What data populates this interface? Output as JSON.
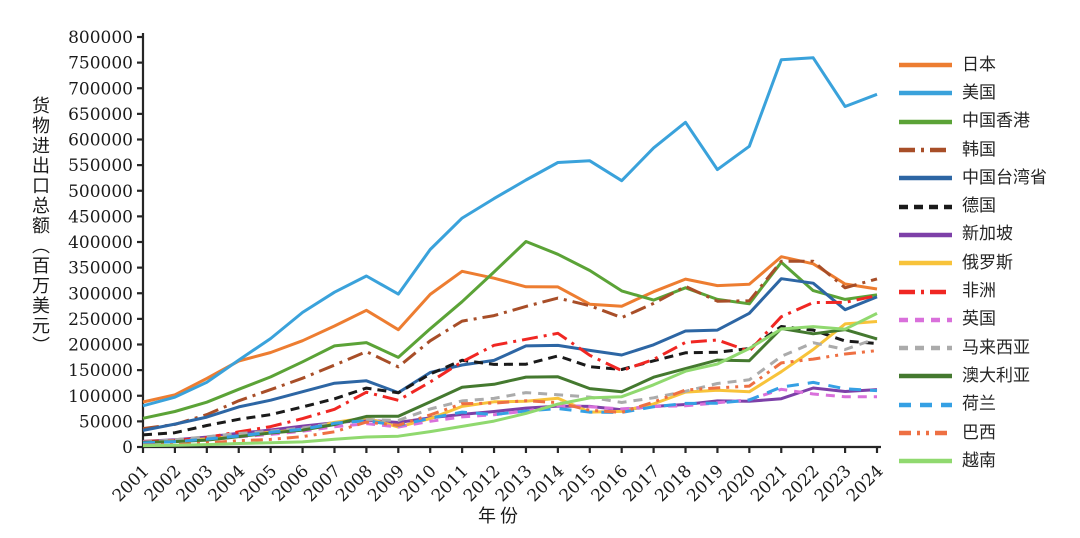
{
  "chart_data": {
    "type": "line",
    "title": "",
    "xlabel": "年份",
    "ylabel": "货物进出口总额（百万美元）",
    "x": [
      2001,
      2002,
      2003,
      2004,
      2005,
      2006,
      2007,
      2008,
      2009,
      2010,
      2011,
      2012,
      2013,
      2014,
      2015,
      2016,
      2017,
      2018,
      2019,
      2020,
      2021,
      2022,
      2023,
      2024
    ],
    "ylim": [
      0,
      800000
    ],
    "y_tick_step": 50000,
    "grid": false,
    "legend_position": "right",
    "axis_color": "#262626",
    "series": [
      {
        "key": "japan",
        "name": "日本",
        "color": "#ED7D31",
        "dash": "",
        "values": [
          87754,
          101910,
          133570,
          167890,
          184440,
          207360,
          236020,
          266780,
          228850,
          297770,
          342890,
          329450,
          312550,
          312440,
          278660,
          274790,
          303000,
          327700,
          315000,
          317530,
          371400,
          357400,
          318000,
          308200
        ]
      },
      {
        "key": "usa",
        "name": "美国",
        "color": "#3AA2DB",
        "dash": "",
        "values": [
          80485,
          97180,
          126330,
          169620,
          211630,
          262680,
          302080,
          333740,
          298260,
          385340,
          446650,
          484680,
          521000,
          555120,
          558390,
          519640,
          583700,
          633520,
          541220,
          586720,
          755645,
          759427,
          664451,
          688283
        ]
      },
      {
        "key": "hong-kong",
        "name": "中国香港",
        "color": "#5BA337",
        "dash": "",
        "values": [
          55971,
          69210,
          87410,
          112680,
          136700,
          166170,
          197250,
          203670,
          174920,
          230580,
          283520,
          341490,
          401010,
          376000,
          344340,
          304600,
          286650,
          310550,
          288000,
          279500,
          360330,
          305100,
          288000,
          297000
        ]
      },
      {
        "key": "korea",
        "name": "韩国",
        "color": "#A84E28",
        "dash": "16 6 3 6",
        "values": [
          35910,
          44070,
          63230,
          90070,
          111930,
          134310,
          159900,
          186110,
          156230,
          207170,
          245630,
          256330,
          274250,
          290490,
          275790,
          252580,
          280260,
          313430,
          284540,
          285260,
          362350,
          362290,
          310700,
          328080
        ]
      },
      {
        "key": "taiwan",
        "name": "中国台湾省",
        "color": "#2D66A4",
        "dash": "",
        "values": [
          32340,
          44650,
          58370,
          78320,
          91230,
          107840,
          124480,
          129220,
          106220,
          145370,
          160030,
          168960,
          197280,
          198310,
          188560,
          179600,
          199390,
          226250,
          228080,
          260810,
          328340,
          319680,
          267840,
          292970
        ]
      },
      {
        "key": "germany",
        "name": "德国",
        "color": "#1A1A1A",
        "dash": "9 6",
        "values": [
          23526,
          27810,
          41880,
          54120,
          63250,
          78230,
          94060,
          114990,
          105730,
          142390,
          169150,
          161130,
          161560,
          177750,
          156780,
          151290,
          168150,
          183880,
          184920,
          192070,
          235180,
          228030,
          206850,
          201880
        ]
      },
      {
        "key": "singapore",
        "name": "新加坡",
        "color": "#7D40A8",
        "dash": "",
        "values": [
          10934,
          14020,
          19350,
          26680,
          33150,
          40850,
          47160,
          52440,
          47860,
          57070,
          63650,
          69280,
          75910,
          79760,
          79240,
          72530,
          79200,
          82870,
          89960,
          89140,
          94280,
          115130,
          108390,
          112000
        ]
      },
      {
        "key": "russia",
        "name": "俄罗斯",
        "color": "#F8C33A",
        "dash": "",
        "values": [
          10670,
          11930,
          15760,
          21230,
          29100,
          33390,
          48170,
          56830,
          38800,
          55450,
          79250,
          88160,
          89210,
          95280,
          68060,
          69520,
          84070,
          107060,
          110750,
          107760,
          146870,
          190270,
          240110,
          244810
        ]
      },
      {
        "key": "africa",
        "name": "非洲",
        "color": "#F02723",
        "dash": "16 6 3 6",
        "values": [
          10800,
          12390,
          18540,
          29460,
          39740,
          55500,
          73570,
          106840,
          91070,
          126910,
          166300,
          198490,
          210240,
          221880,
          179000,
          149120,
          170640,
          204190,
          208700,
          187000,
          254290,
          282000,
          282100,
          295560
        ]
      },
      {
        "key": "uk",
        "name": "英国",
        "color": "#D970DB",
        "dash": "9 7",
        "values": [
          10310,
          11390,
          14390,
          19700,
          24510,
          30780,
          39430,
          45630,
          39100,
          50080,
          58790,
          63100,
          70040,
          80870,
          78540,
          74340,
          79030,
          80440,
          86270,
          92300,
          112660,
          103460,
          97980,
          98200
        ]
      },
      {
        "key": "malaysia",
        "name": "马来西亚",
        "color": "#ABABAB",
        "dash": "9 7",
        "values": [
          9425,
          14270,
          20130,
          26260,
          30700,
          37110,
          46390,
          53470,
          51960,
          74210,
          90010,
          94810,
          106070,
          102020,
          97360,
          86850,
          96030,
          108660,
          123960,
          131160,
          176800,
          203590,
          190240,
          212040
        ]
      },
      {
        "key": "australia",
        "name": "澳大利亚",
        "color": "#44792F",
        "dash": "",
        "values": [
          8999,
          10440,
          13560,
          20390,
          27250,
          32910,
          43850,
          59660,
          60080,
          88090,
          116560,
          122330,
          136380,
          136900,
          113960,
          107800,
          136240,
          152940,
          169600,
          168300,
          231200,
          220920,
          229170,
          211000
        ]
      },
      {
        "key": "netherlands",
        "name": "荷兰",
        "color": "#35A0E4",
        "dash": "12 9",
        "values": [
          7900,
          10550,
          15440,
          21490,
          28810,
          34590,
          46330,
          51270,
          41920,
          56140,
          68150,
          63160,
          70150,
          74910,
          68170,
          67570,
          78380,
          85170,
          85520,
          91690,
          116940,
          126090,
          113620,
          110000
        ]
      },
      {
        "key": "brazil",
        "name": "巴西",
        "color": "#EE7043",
        "dash": "12 6 3 6 3 6",
        "values": [
          3698,
          4470,
          7990,
          12360,
          14820,
          20290,
          29730,
          48660,
          42400,
          62550,
          84200,
          85720,
          90280,
          86580,
          71540,
          67790,
          87540,
          111190,
          115370,
          118860,
          164100,
          171490,
          181530,
          188170
        ]
      },
      {
        "key": "vietnam",
        "name": "越南",
        "color": "#90D96F",
        "dash": "",
        "values": [
          2815,
          3260,
          4630,
          6740,
          8200,
          9950,
          15120,
          19460,
          21050,
          30090,
          40210,
          50440,
          65480,
          83640,
          95820,
          98230,
          121270,
          147860,
          162000,
          192280,
          230200,
          234920,
          229800,
          260650
        ]
      }
    ]
  }
}
